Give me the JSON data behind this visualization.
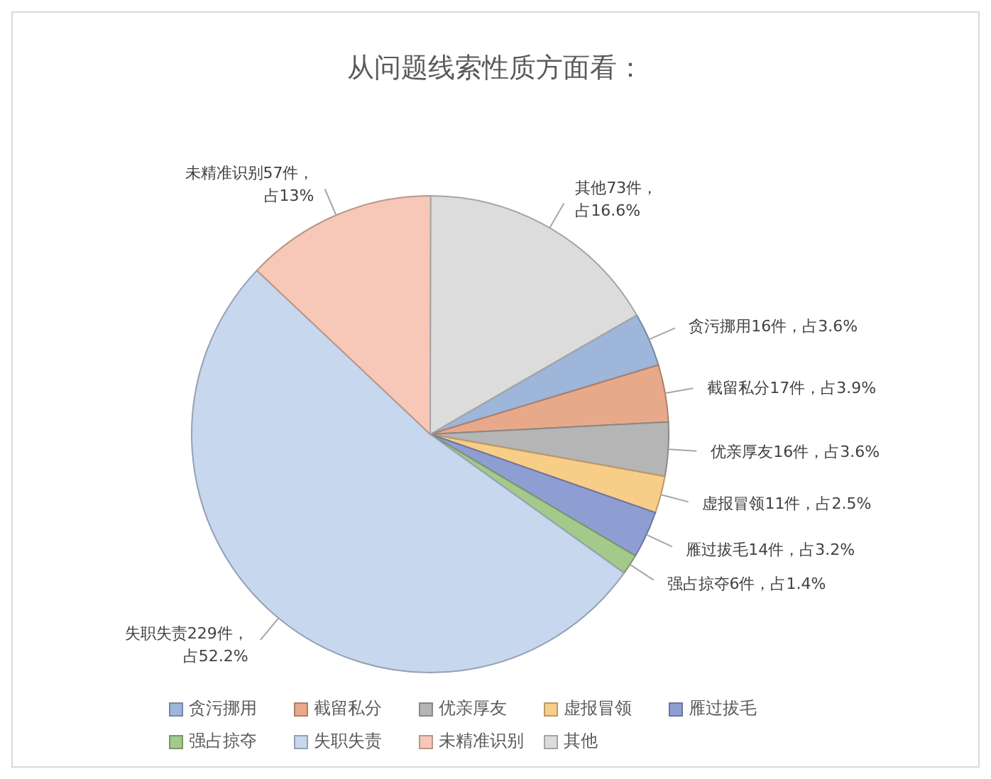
{
  "chart_data": {
    "type": "pie",
    "title": "从问题线索性质方面看：",
    "categories": [
      "贪污挪用",
      "截留私分",
      "优亲厚友",
      "虚报冒领",
      "雁过拔毛",
      "强占掠夺",
      "失职失责",
      "未精准识别",
      "其他"
    ],
    "values": [
      16,
      17,
      16,
      11,
      14,
      6,
      229,
      57,
      73
    ],
    "colors": [
      "#9db6da",
      "#e8a98a",
      "#b5b5b5",
      "#f8cd88",
      "#8f9ed2",
      "#a3c98b",
      "#c6d7ee",
      "#f7c8b7",
      "#dcdcdc"
    ],
    "value_labels": [
      "贪污挪用16件，占3.6%",
      "截留私分17件，占3.9%",
      "优亲厚友16件，占3.6%",
      "虚报冒领11件，占2.5%",
      "雁过拔毛14件，占3.2%",
      "强占掠夺6件，占1.4%",
      "失职失责229件，占52.2%",
      "未精准识别57件，占13%",
      "其他73件，占16.6%"
    ],
    "legend": "bottom"
  }
}
